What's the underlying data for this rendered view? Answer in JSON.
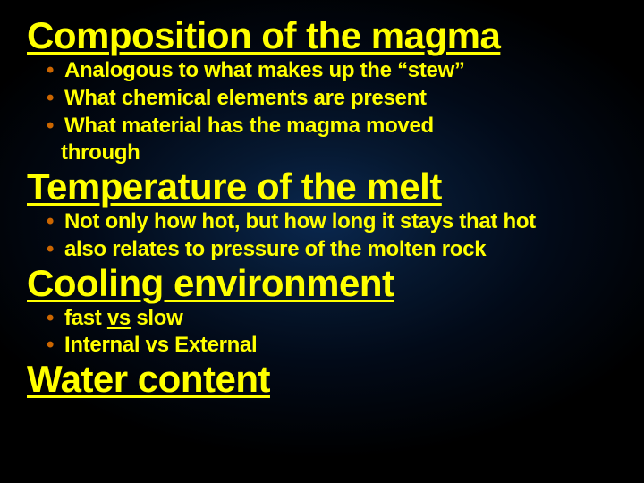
{
  "slide": {
    "background": {
      "gradient_center": "#0a2850",
      "gradient_mid": "#061830",
      "gradient_outer": "#020a18",
      "gradient_edge": "#000000"
    },
    "text_color": "#ffff00",
    "bullet_color": "#cc6600",
    "font_family": "Comic Sans MS",
    "heading_fontsize": 42,
    "bullet_fontsize": 24,
    "sections": [
      {
        "heading": "Composition of the magma",
        "bullets": [
          "Analogous to what makes up the “stew”",
          "What chemical elements are present",
          "What material has the magma moved"
        ],
        "continuation": "through"
      },
      {
        "heading": "Temperature of the melt",
        "bullets": [
          "Not only how hot, but how long it stays that hot",
          "also relates to pressure of the molten rock"
        ]
      },
      {
        "heading": "Cooling environment",
        "bullets_html": [
          {
            "pre": "fast ",
            "u": "vs",
            "post": " slow"
          },
          {
            "text": "Internal  vs  External"
          }
        ]
      },
      {
        "heading": "Water content",
        "bullets": []
      }
    ]
  }
}
